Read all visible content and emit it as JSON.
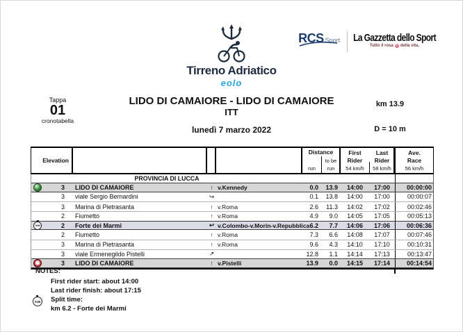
{
  "brand": {
    "name": "Tirreno Adriatico",
    "sponsor": "eolo",
    "logo_icon": "trident-cyclist-icon"
  },
  "partners": {
    "rcs_name": "RCS",
    "rcs_sub": "Sport",
    "gazzetta_name": "La Gazzetta dello Sport",
    "gazzetta_tagline_left": "Tutto il rosa",
    "gazzetta_tagline_right": "della vita."
  },
  "stage": {
    "tappa_label": "Tappa",
    "number": "01",
    "sub_label": "cronotabella",
    "title": "LIDO DI CAMAIORE - LIDO DI CAMAIORE",
    "type": "ITT",
    "date": "lunedì 7 marzo 2022",
    "distance": "km 13.9",
    "elevation_gain": "D = 10 m"
  },
  "table": {
    "col_elevation": "Elevation",
    "col_distance": "Distance",
    "col_run": "run",
    "col_to_be": "to be",
    "col_to_be_run": "run",
    "col_first": "First",
    "col_first2": "Rider",
    "col_first_speed": "54 km/h",
    "col_last": "Last",
    "col_last2": "Rider",
    "col_last_speed": "58 km/h",
    "col_ave": "Ave.",
    "col_ave2": "Race",
    "col_ave_speed": "56 km/h",
    "section_header": "PROVINCIA DI LUCCA",
    "split_icon_label": "0:00",
    "rows": [
      {
        "icon": "start-icon",
        "elev": "3",
        "location": "LIDO DI CAMAIORE",
        "arrow": "↑",
        "street": "v.Kennedy",
        "run": "0.0",
        "togo": "13.9",
        "first": "14:00",
        "last": "17:00",
        "ave": "00:00:00",
        "highlight": "gray"
      },
      {
        "icon": "",
        "elev": "3",
        "location": "viale Sergio Bernardini",
        "arrow": "↪",
        "street": "",
        "run": "0.1",
        "togo": "13.8",
        "first": "14:00",
        "last": "17:00",
        "ave": "00:00:07",
        "highlight": ""
      },
      {
        "icon": "",
        "elev": "3",
        "location": "Marina di Pietrasanta",
        "arrow": "↑",
        "street": "v.Roma",
        "run": "2.6",
        "togo": "11.3",
        "first": "14:02",
        "last": "17:02",
        "ave": "00:02:46",
        "highlight": ""
      },
      {
        "icon": "",
        "elev": "2",
        "location": "Fiumetto",
        "arrow": "↑",
        "street": "v.Roma",
        "run": "4.9",
        "togo": "9.0",
        "first": "14:05",
        "last": "17:05",
        "ave": "00:05:13",
        "highlight": ""
      },
      {
        "icon": "split-time-icon",
        "elev": "2",
        "location": "Forte dei Marmi",
        "arrow": "↩",
        "street": "v.Colombo-v.Morin-v.Repubblica",
        "run": "6.2",
        "togo": "7.7",
        "first": "14:06",
        "last": "17:06",
        "ave": "00:06:36",
        "highlight": "lavender"
      },
      {
        "icon": "",
        "elev": "2",
        "location": "Fiumetto",
        "arrow": "↑",
        "street": "v.Roma",
        "run": "7.3",
        "togo": "6.6",
        "first": "14:08",
        "last": "17:07",
        "ave": "00:07:46",
        "highlight": ""
      },
      {
        "icon": "",
        "elev": "3",
        "location": "Marina di Pietrasanta",
        "arrow": "↑",
        "street": "v.Roma",
        "run": "9.6",
        "togo": "4.3",
        "first": "14:10",
        "last": "17:10",
        "ave": "00:10:31",
        "highlight": ""
      },
      {
        "icon": "",
        "elev": "3",
        "location": "viale Ermenegildo Pistelli",
        "arrow": "↗",
        "street": "",
        "run": "12.8",
        "togo": "1.1",
        "first": "14:14",
        "last": "17:13",
        "ave": "00:13:47",
        "highlight": ""
      },
      {
        "icon": "finish-icon",
        "elev": "3",
        "location": "LIDO DI CAMAIORE",
        "arrow": "↑",
        "street": "v.Pistelli",
        "run": "13.9",
        "togo": "0.0",
        "first": "14:15",
        "last": "17:14",
        "ave": "00:14:54",
        "highlight": "gray"
      }
    ]
  },
  "notes": {
    "title": "NOTES:",
    "line1": "First rider start: about 14:00",
    "line2": "Last rider finish: about 17:15",
    "line3": "Split time:",
    "line4": "km 6.2 - Forte dei Marmi"
  },
  "colors": {
    "brand_navy": "#1c2c3e",
    "sponsor_blue": "#29a8e0",
    "rcs_navy": "#1d3d6e",
    "highlight_gray": "#d6d6d6",
    "highlight_lavender": "#dadbe7"
  }
}
